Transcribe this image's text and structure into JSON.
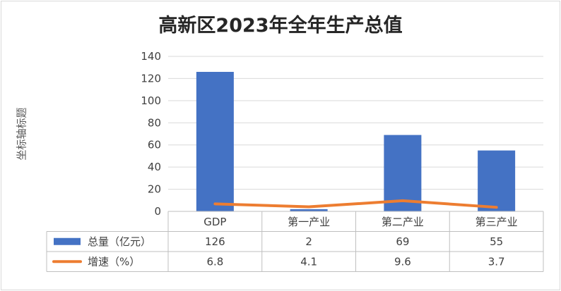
{
  "title": "高新区2023年全年生产总值",
  "chart_data": {
    "type": "bar",
    "title": "高新区2023年全年生产总值",
    "ylabel": "坐标轴标题",
    "xlabel": "",
    "categories": [
      "GDP",
      "第一产业",
      "第二产业",
      "第三产业"
    ],
    "ylim": [
      0,
      140
    ],
    "yticks": [
      0,
      20,
      40,
      60,
      80,
      100,
      120,
      140
    ],
    "grid": true,
    "series": [
      {
        "name": "总量（亿元）",
        "type": "bar",
        "color": "#4472c4",
        "values": [
          126,
          2,
          69,
          55
        ]
      },
      {
        "name": "增速（%）",
        "type": "line",
        "color": "#ed7d31",
        "values": [
          6.8,
          4.1,
          9.6,
          3.7
        ]
      }
    ],
    "data_table": true
  }
}
